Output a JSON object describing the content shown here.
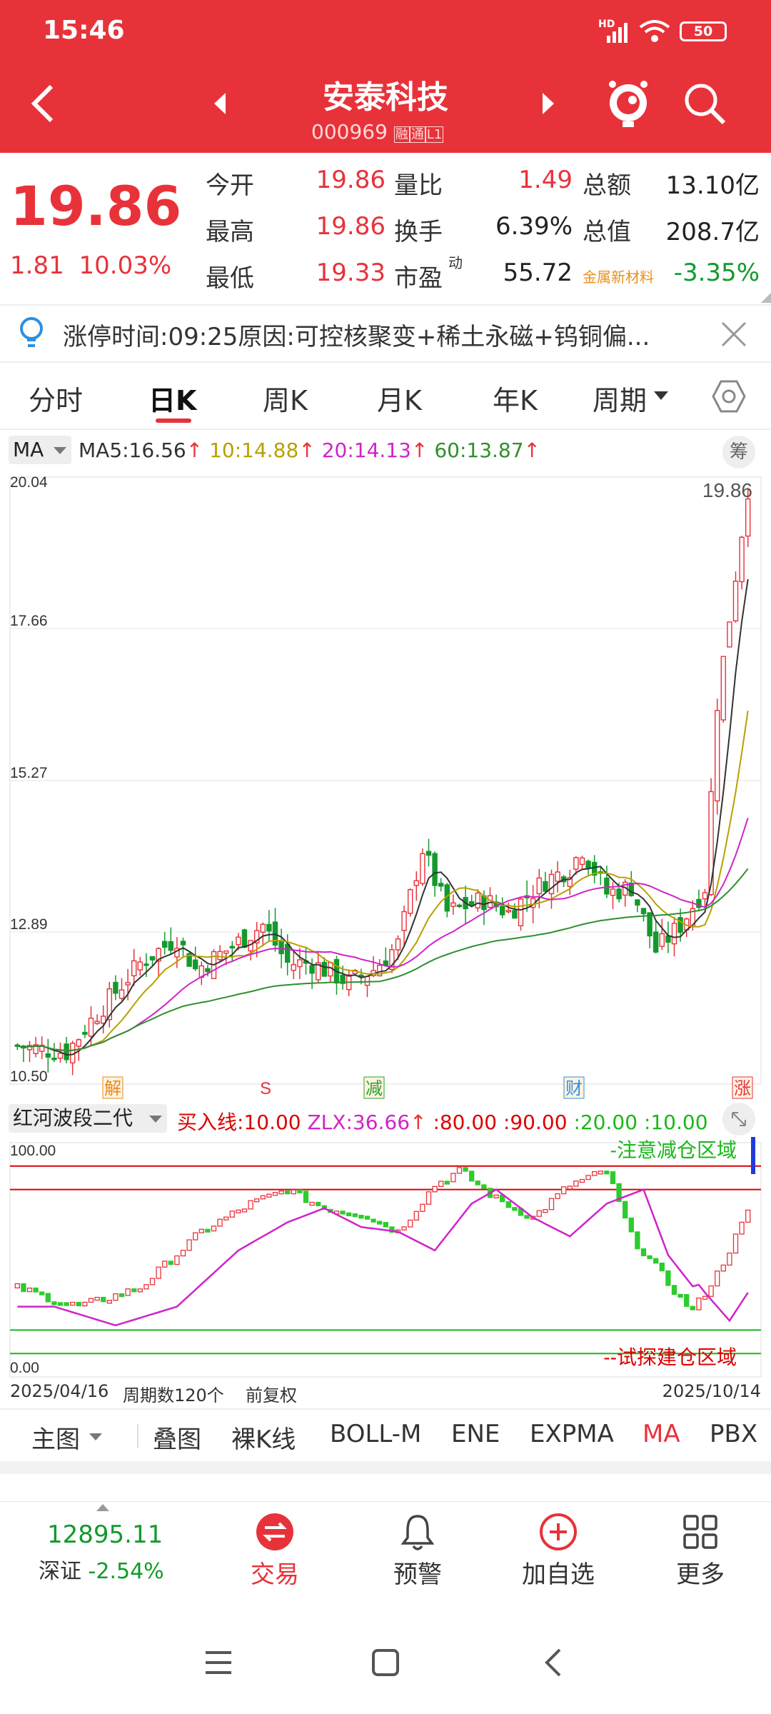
{
  "status_bar": {
    "time": "15:46",
    "network": "HD",
    "battery": "50"
  },
  "header": {
    "title": "安泰科技",
    "code": "000969",
    "badge1": "融",
    "badge2": "通",
    "badge3": "L1"
  },
  "quote": {
    "price": "19.86",
    "change": "1.81",
    "change_pct": "10.03%",
    "rows": [
      {
        "l1": "今开",
        "v1": "19.86",
        "l2": "量比",
        "v2": "1.49",
        "l3": "总额",
        "v3": "13.10亿"
      },
      {
        "l1": "最高",
        "v1": "19.86",
        "l2": "换手",
        "v2": "6.39%",
        "l3": "总值",
        "v3": "208.7亿"
      },
      {
        "l1": "最低",
        "v1": "19.33",
        "l2": "市盈",
        "l2sup": "动",
        "v2": "55.72",
        "l3": "金属新材料",
        "v3": "-3.35%"
      }
    ]
  },
  "notice": {
    "text": "涨停时间:09:25原因:可控核聚变+稀土永磁+钨铜偏..."
  },
  "tabs": [
    "分时",
    "日K",
    "周K",
    "月K",
    "年K",
    "周期"
  ],
  "indicator_bar": {
    "selector": "MA",
    "ma5": "MA5:16.56",
    "ma10": "10:14.88",
    "ma20": "20:14.13",
    "ma60": "60:13.87",
    "chip": "筹"
  },
  "main_chart": {
    "y_top": "20.04",
    "y_2": "17.66",
    "y_3": "15.27",
    "y_4": "12.89",
    "y_bottom": "10.50",
    "last_price": "19.86",
    "markers": [
      "解",
      "S",
      "减",
      "财",
      "涨"
    ]
  },
  "sub_indicator": {
    "name": "红河波段二代",
    "buy_line": "买入线:10.00",
    "zlx": "ZLX:36.66",
    "l80": ":80.00",
    "l90": ":90.00",
    "l20": ":20.00",
    "l10": ":10.00",
    "y_top": "100.00",
    "y_bottom": "0.00",
    "zone_top": "-注意减仓区域",
    "zone_bottom": "--试探建仓区域"
  },
  "date_bar": {
    "start": "2025/04/16",
    "period": "周期数120个",
    "adjust": "前复权",
    "end": "2025/10/14"
  },
  "tool_tabs": [
    "主图",
    "叠图",
    "裸K线",
    "BOLL-M",
    "ENE",
    "EXPMA",
    "MA",
    "PBX"
  ],
  "bottom_nav": {
    "index_value": "12895.11",
    "index_name": "深证",
    "index_change": "-2.54%",
    "trade": "交易",
    "alert": "预警",
    "add": "加自选",
    "more": "更多"
  },
  "colors": {
    "header_red": "#e8323a",
    "rise": "#e8323a",
    "fall": "#129a2c",
    "ma5": "#333333",
    "ma10": "#b8a000",
    "ma20": "#d024c8",
    "ma60": "#2f8f2f"
  }
}
